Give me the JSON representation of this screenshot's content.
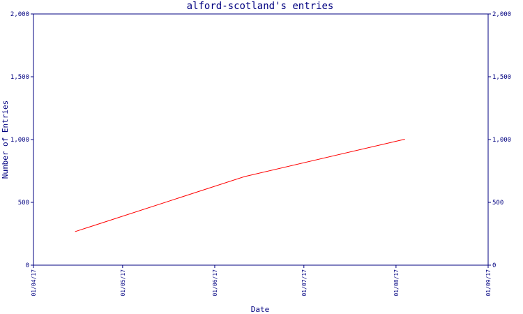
{
  "colors": {
    "axis": "#000080",
    "text": "#000080",
    "line": "#ff0000",
    "background": "#ffffff"
  },
  "chart_data": {
    "type": "line",
    "title": "alford-scotland's entries",
    "xlabel": "Date",
    "ylabel": "Number of Entries",
    "ylim": [
      0,
      2000
    ],
    "xlim": [
      "2017-04-01",
      "2017-09-01"
    ],
    "y_ticks": [
      0,
      500,
      1000,
      1500,
      2000
    ],
    "y_tick_labels": [
      "0",
      "500",
      "1,000",
      "1,500",
      "2,000"
    ],
    "x_ticks": [
      "2017-04-01",
      "2017-05-01",
      "2017-06-01",
      "2017-07-01",
      "2017-08-01",
      "2017-09-01"
    ],
    "x_tick_labels": [
      "01/04/17",
      "01/05/17",
      "01/06/17",
      "01/07/17",
      "01/08/17",
      "01/09/17"
    ],
    "grid": false,
    "legend": "none",
    "series": [
      {
        "x": [
          "2017-04-15",
          "2017-06-11",
          "2017-08-04"
        ],
        "y": [
          267,
          705,
          1003
        ]
      }
    ]
  }
}
